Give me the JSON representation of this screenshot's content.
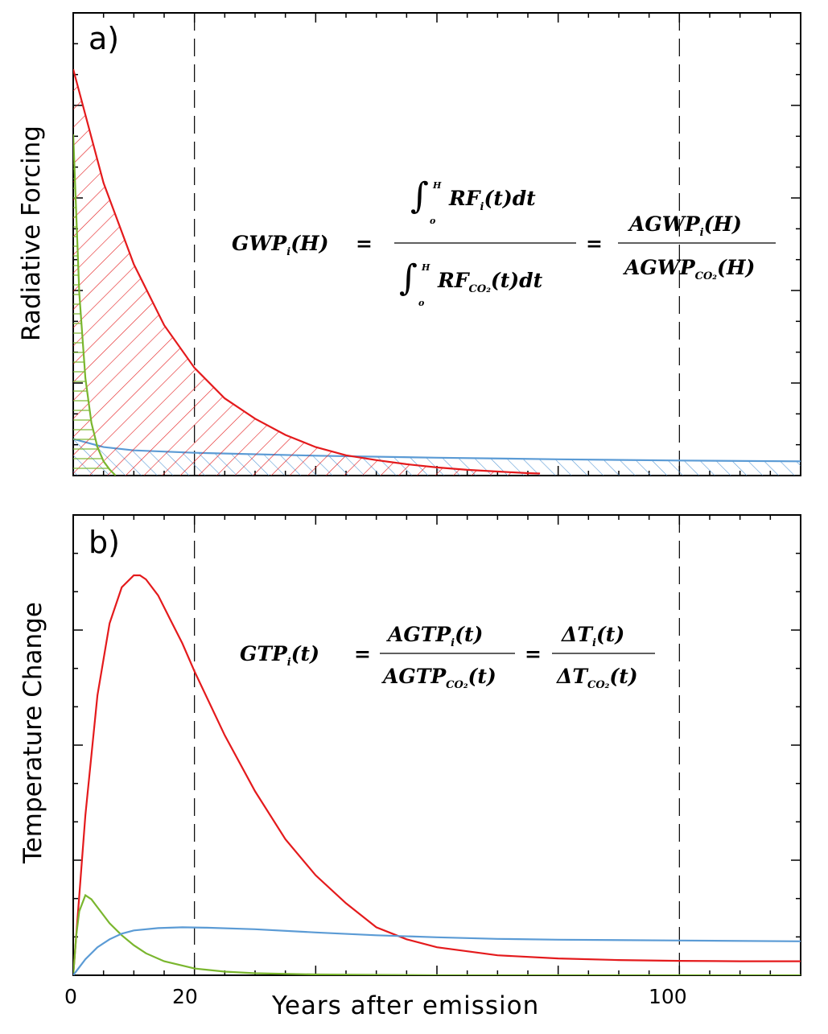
{
  "chart_data": [
    {
      "panel": "a)",
      "type": "line",
      "ylabel": "Radiative Forcing",
      "x_vlines": [
        20,
        100
      ],
      "series": [
        {
          "color": "#e41a1c",
          "hatched": true,
          "x": [
            0,
            5,
            10,
            15,
            20,
            25,
            30,
            35,
            40,
            45,
            50,
            55,
            60,
            65,
            70,
            75,
            77
          ],
          "y": [
            1.0,
            0.72,
            0.52,
            0.37,
            0.265,
            0.19,
            0.14,
            0.1,
            0.07,
            0.05,
            0.038,
            0.028,
            0.02,
            0.014,
            0.01,
            0.006,
            0.005
          ]
        },
        {
          "color": "#7ab62e",
          "hatched": true,
          "x": [
            0,
            1,
            2,
            3,
            4,
            5,
            6,
            7
          ],
          "y": [
            0.84,
            0.45,
            0.24,
            0.13,
            0.07,
            0.035,
            0.015,
            0.0
          ]
        },
        {
          "color": "#5b9bd5",
          "hatched": true,
          "x": [
            0,
            5,
            10,
            20,
            40,
            60,
            80,
            100,
            120
          ],
          "y": [
            0.09,
            0.07,
            0.062,
            0.056,
            0.049,
            0.044,
            0.04,
            0.037,
            0.035
          ]
        }
      ],
      "equation": {
        "lhs": "GWP",
        "lhs_sub": "i",
        "lhs_arg": "(H)",
        "eq": "=",
        "num_rf": "RF",
        "num_sub": "i",
        "num_arg": "(t)dt",
        "den_rf": "RF",
        "den_sub": "CO₂",
        "den_arg": "(t)dt",
        "lim_hi": "H",
        "lim_lo": "o",
        "rhs_num": "AGWP",
        "rhs_num_sub": "i",
        "rhs_num_arg": "(H)",
        "rhs_den": "AGWP",
        "rhs_den_sub": "CO₂",
        "rhs_den_arg": "(H)"
      }
    },
    {
      "panel": "b)",
      "type": "line",
      "ylabel": "Temperature Change",
      "xlabel": "Years after emission",
      "x_ticks": [
        0,
        20,
        100
      ],
      "x_tick_labels": [
        "0",
        "20",
        "100"
      ],
      "x_vlines": [
        20,
        100
      ],
      "xlim": [
        0,
        120
      ],
      "series": [
        {
          "color": "#e41a1c",
          "x": [
            0,
            2,
            4,
            6,
            8,
            10,
            11,
            12,
            14,
            16,
            18,
            20,
            25,
            30,
            35,
            40,
            45,
            50,
            55,
            60,
            70,
            80,
            90,
            100,
            110,
            120
          ],
          "y": [
            0,
            0.4,
            0.7,
            0.88,
            0.97,
            1.0,
            1.0,
            0.99,
            0.95,
            0.89,
            0.83,
            0.76,
            0.6,
            0.46,
            0.34,
            0.25,
            0.18,
            0.12,
            0.09,
            0.07,
            0.05,
            0.042,
            0.038,
            0.036,
            0.035,
            0.035
          ]
        },
        {
          "color": "#7ab62e",
          "x": [
            0,
            0.5,
            1,
            2,
            3,
            4,
            5,
            6,
            8,
            10,
            12,
            15,
            20,
            25,
            30,
            40,
            50,
            60,
            120
          ],
          "y": [
            0,
            0.1,
            0.16,
            0.2,
            0.19,
            0.17,
            0.15,
            0.13,
            0.1,
            0.075,
            0.055,
            0.035,
            0.017,
            0.009,
            0.005,
            0.002,
            0.001,
            0.0,
            0.0
          ]
        },
        {
          "color": "#5b9bd5",
          "x": [
            0,
            2,
            4,
            6,
            8,
            10,
            14,
            18,
            22,
            30,
            40,
            50,
            60,
            70,
            80,
            100,
            120
          ],
          "y": [
            0,
            0.04,
            0.07,
            0.09,
            0.104,
            0.112,
            0.118,
            0.12,
            0.119,
            0.115,
            0.107,
            0.1,
            0.095,
            0.091,
            0.089,
            0.087,
            0.085
          ]
        }
      ],
      "equation": {
        "lhs": "GTP",
        "lhs_sub": "i",
        "lhs_arg": "(t)",
        "eq": "=",
        "num": "AGTP",
        "num_sub": "i",
        "num_arg": "(t)",
        "den": "AGTP",
        "den_sub": "CO₂",
        "den_arg": "(t)",
        "rhs_num": "ΔT",
        "rhs_num_sub": "i",
        "rhs_num_arg": "(t)",
        "rhs_den": "ΔT",
        "rhs_den_sub": "CO₂",
        "rhs_den_arg": "(t)"
      }
    }
  ]
}
